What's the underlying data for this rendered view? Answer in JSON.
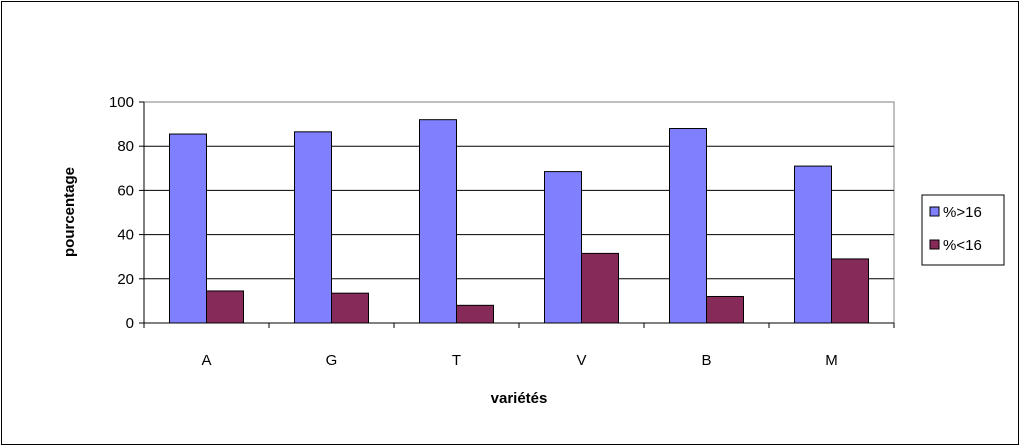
{
  "chart_data": {
    "type": "bar",
    "title": "",
    "xlabel": "variétés",
    "ylabel": "pourcentage",
    "categories": [
      "A",
      "G",
      "T",
      "V",
      "B",
      "M"
    ],
    "series": [
      {
        "name": "%>16",
        "color": "#8080ff",
        "values": [
          85.5,
          86.5,
          92,
          68.5,
          88,
          71
        ]
      },
      {
        "name": "%<16",
        "color": "#862a5a",
        "values": [
          14.5,
          13.5,
          8,
          31.5,
          12,
          29
        ]
      }
    ],
    "ylim": [
      0,
      100
    ],
    "yticks": [
      0,
      20,
      40,
      60,
      80,
      100
    ],
    "grid": true,
    "legend_position": "right"
  }
}
